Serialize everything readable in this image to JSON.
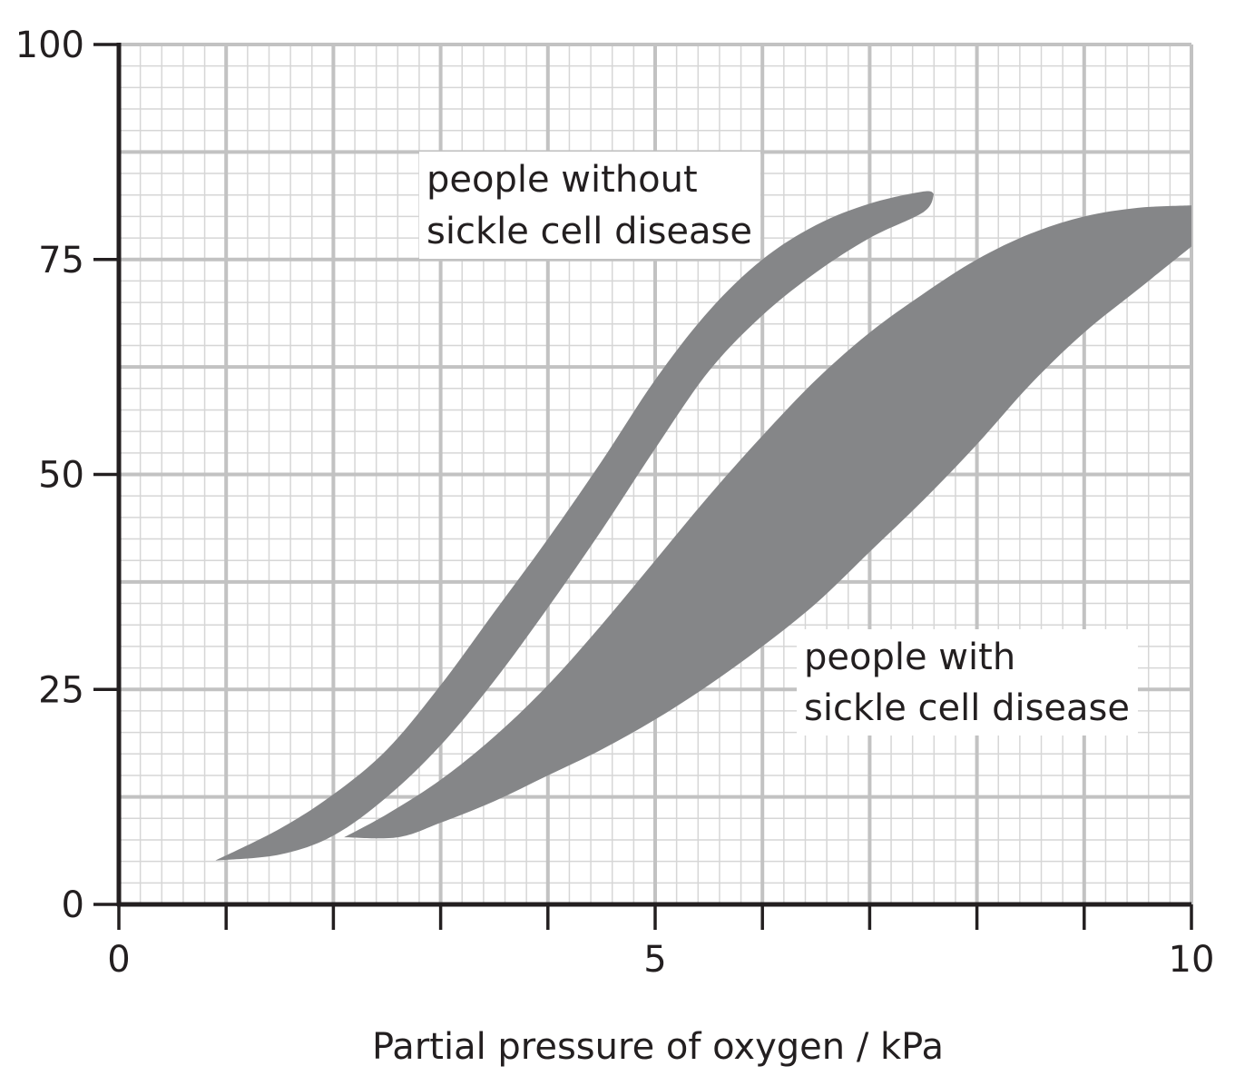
{
  "chart_data": {
    "type": "area",
    "title": "",
    "xlabel": "Partial pressure of oxygen / kPa",
    "ylabel": "",
    "xlim": [
      0,
      10
    ],
    "ylim": [
      0,
      100
    ],
    "x_ticks": [
      0,
      1,
      2,
      3,
      4,
      5,
      6,
      7,
      8,
      9,
      10
    ],
    "x_tick_labels": [
      {
        "value": 0,
        "text": "0"
      },
      {
        "value": 5,
        "text": "5"
      },
      {
        "value": 10,
        "text": "10"
      }
    ],
    "y_ticks": [
      0,
      25,
      50,
      75,
      100
    ],
    "y_tick_labels": [
      {
        "value": 0,
        "text": "0"
      },
      {
        "value": 25,
        "text": "25"
      },
      {
        "value": 50,
        "text": "50"
      },
      {
        "value": 75,
        "text": "75"
      },
      {
        "value": 100,
        "text": "100"
      }
    ],
    "grid": true,
    "grid_minor_step_x": 0.2,
    "grid_minor_step_y": 2.5,
    "legend": "none",
    "colors": {
      "band_fill": "#858688",
      "grid_major": "#c2c2c2",
      "grid_minor": "#d6d6d6",
      "axis": "#231f20",
      "label_bg": "#ffffff"
    },
    "series": [
      {
        "name": "people without sickle cell disease",
        "label_lines": [
          "people without",
          "sickle cell disease"
        ],
        "upper": [
          [
            0.9,
            5.1
          ],
          [
            1.5,
            8.8
          ],
          [
            2.0,
            12.8
          ],
          [
            2.5,
            18.0
          ],
          [
            3.0,
            25.5
          ],
          [
            3.5,
            34.0
          ],
          [
            4.0,
            42.5
          ],
          [
            4.5,
            51.5
          ],
          [
            5.0,
            61.0
          ],
          [
            5.5,
            69.0
          ],
          [
            6.0,
            75.0
          ],
          [
            6.5,
            79.0
          ],
          [
            7.0,
            81.5
          ],
          [
            7.5,
            82.9
          ],
          [
            7.6,
            82.6
          ]
        ],
        "lower": [
          [
            0.9,
            5.1
          ],
          [
            1.5,
            5.8
          ],
          [
            2.0,
            8.0
          ],
          [
            2.5,
            12.5
          ],
          [
            3.0,
            18.5
          ],
          [
            3.5,
            26.0
          ],
          [
            4.0,
            34.5
          ],
          [
            4.5,
            43.5
          ],
          [
            5.0,
            53.0
          ],
          [
            5.5,
            62.0
          ],
          [
            6.0,
            68.5
          ],
          [
            6.5,
            73.5
          ],
          [
            7.0,
            77.5
          ],
          [
            7.5,
            80.5
          ],
          [
            7.6,
            82.6
          ]
        ]
      },
      {
        "name": "people with sickle cell disease",
        "label_lines": [
          "people with",
          "sickle cell disease"
        ],
        "upper": [
          [
            2.1,
            7.8
          ],
          [
            2.5,
            10.5
          ],
          [
            3.0,
            14.5
          ],
          [
            3.5,
            19.5
          ],
          [
            4.0,
            25.5
          ],
          [
            4.5,
            32.5
          ],
          [
            5.0,
            40.0
          ],
          [
            5.5,
            47.5
          ],
          [
            6.0,
            54.5
          ],
          [
            6.5,
            61.0
          ],
          [
            7.0,
            66.5
          ],
          [
            7.5,
            71.0
          ],
          [
            8.0,
            75.0
          ],
          [
            8.5,
            78.0
          ],
          [
            9.0,
            80.0
          ],
          [
            9.5,
            81.0
          ],
          [
            10.0,
            81.3
          ]
        ],
        "lower": [
          [
            2.1,
            7.8
          ],
          [
            2.6,
            7.8
          ],
          [
            3.0,
            9.5
          ],
          [
            3.5,
            12.0
          ],
          [
            4.0,
            15.0
          ],
          [
            4.5,
            18.0
          ],
          [
            5.0,
            21.5
          ],
          [
            5.5,
            25.5
          ],
          [
            6.0,
            30.0
          ],
          [
            6.5,
            35.0
          ],
          [
            7.0,
            41.0
          ],
          [
            7.5,
            47.0
          ],
          [
            8.0,
            53.5
          ],
          [
            8.5,
            60.5
          ],
          [
            9.0,
            66.5
          ],
          [
            9.5,
            71.5
          ],
          [
            10.0,
            76.5
          ]
        ]
      }
    ]
  }
}
